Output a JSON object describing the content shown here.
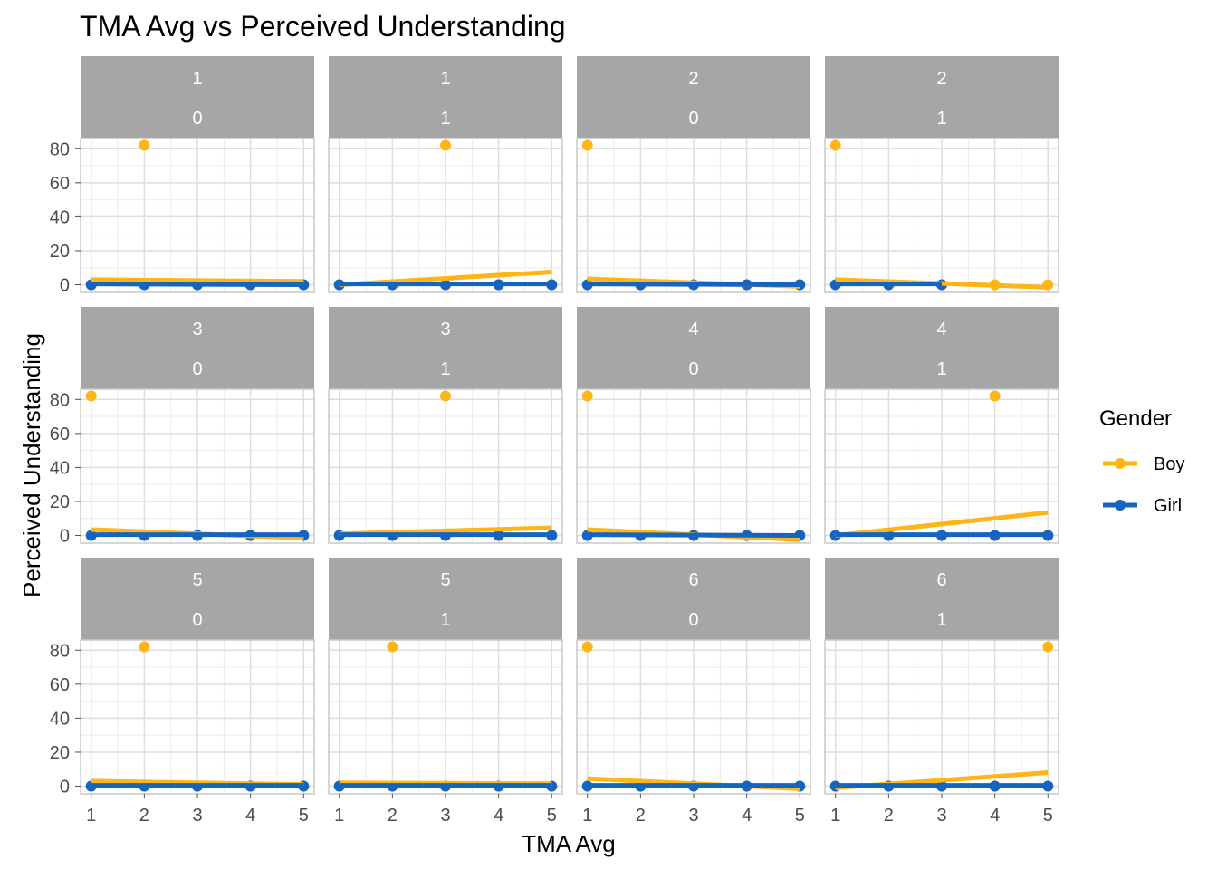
{
  "chart_data": {
    "type": "scatter",
    "title": "TMA Avg vs Perceived Understanding",
    "xlabel": "TMA Avg",
    "ylabel": "Perceived Understanding",
    "xlim": [
      0.8,
      5.2
    ],
    "ylim": [
      -4.5,
      86
    ],
    "x_ticks": [
      1,
      2,
      3,
      4,
      5
    ],
    "y_ticks": [
      0,
      20,
      40,
      60,
      80
    ],
    "grid": true,
    "legend": {
      "title": "Gender",
      "position": "right",
      "entries": [
        {
          "name": "Boy",
          "color": "#FFB515"
        },
        {
          "name": "Girl",
          "color": "#1565C0"
        }
      ]
    },
    "facets": [
      {
        "row1": "1",
        "row2": "0",
        "boy_points": [
          [
            1,
            0
          ],
          [
            2,
            82
          ],
          [
            3,
            0
          ],
          [
            4,
            0
          ],
          [
            5,
            0
          ]
        ],
        "girl_points": [
          [
            1,
            0
          ],
          [
            2,
            0
          ],
          [
            3,
            0
          ],
          [
            4,
            0
          ],
          [
            5,
            0
          ]
        ],
        "boy_fit": [
          [
            1,
            3
          ],
          [
            5,
            2
          ]
        ],
        "girl_fit": [
          [
            1,
            0.5
          ],
          [
            5,
            0
          ]
        ]
      },
      {
        "row1": "1",
        "row2": "1",
        "boy_points": [
          [
            1,
            0
          ],
          [
            2,
            0
          ],
          [
            3,
            82
          ],
          [
            4,
            0
          ],
          [
            5,
            0
          ]
        ],
        "girl_points": [
          [
            1,
            0
          ],
          [
            2,
            0
          ],
          [
            3,
            0
          ],
          [
            4,
            0
          ],
          [
            5,
            0
          ]
        ],
        "boy_fit": [
          [
            1,
            0
          ],
          [
            5,
            7.5
          ]
        ],
        "girl_fit": [
          [
            1,
            0.5
          ],
          [
            5,
            0.5
          ]
        ]
      },
      {
        "row1": "2",
        "row2": "0",
        "boy_points": [
          [
            1,
            82
          ],
          [
            2,
            0
          ],
          [
            3,
            0
          ],
          [
            4,
            0
          ],
          [
            5,
            0
          ]
        ],
        "girl_points": [
          [
            1,
            0
          ],
          [
            2,
            0
          ],
          [
            3,
            0
          ],
          [
            4,
            0
          ],
          [
            5,
            0
          ]
        ],
        "boy_fit": [
          [
            1,
            3.5
          ],
          [
            5,
            -1
          ]
        ],
        "girl_fit": [
          [
            1,
            0.5
          ],
          [
            5,
            0
          ]
        ]
      },
      {
        "row1": "2",
        "row2": "1",
        "boy_points": [
          [
            1,
            82
          ],
          [
            2,
            0
          ],
          [
            3,
            0
          ],
          [
            4,
            0
          ],
          [
            5,
            0
          ]
        ],
        "girl_points": [
          [
            1,
            0
          ],
          [
            2,
            0
          ],
          [
            3,
            0
          ]
        ],
        "boy_fit": [
          [
            1,
            3
          ],
          [
            5,
            -1.5
          ]
        ],
        "girl_fit": [
          [
            1,
            0.5
          ],
          [
            3,
            0.5
          ]
        ]
      },
      {
        "row1": "3",
        "row2": "0",
        "boy_points": [
          [
            1,
            82
          ],
          [
            2,
            0
          ],
          [
            3,
            0
          ],
          [
            4,
            0
          ],
          [
            5,
            0
          ]
        ],
        "girl_points": [
          [
            1,
            0
          ],
          [
            2,
            0
          ],
          [
            3,
            0
          ],
          [
            4,
            0
          ],
          [
            5,
            0
          ]
        ],
        "boy_fit": [
          [
            1,
            3.5
          ],
          [
            5,
            -1.5
          ]
        ],
        "girl_fit": [
          [
            1,
            0.5
          ],
          [
            5,
            0.5
          ]
        ]
      },
      {
        "row1": "3",
        "row2": "1",
        "boy_points": [
          [
            1,
            0
          ],
          [
            2,
            0
          ],
          [
            3,
            82
          ],
          [
            4,
            0
          ],
          [
            5,
            0
          ]
        ],
        "girl_points": [
          [
            1,
            0
          ],
          [
            2,
            0
          ],
          [
            3,
            0
          ],
          [
            4,
            0
          ],
          [
            5,
            0
          ]
        ],
        "boy_fit": [
          [
            1,
            1
          ],
          [
            5,
            4.5
          ]
        ],
        "girl_fit": [
          [
            1,
            0.5
          ],
          [
            5,
            0.5
          ]
        ]
      },
      {
        "row1": "4",
        "row2": "0",
        "boy_points": [
          [
            1,
            82
          ],
          [
            2,
            0
          ],
          [
            3,
            0
          ],
          [
            4,
            0
          ],
          [
            5,
            0
          ]
        ],
        "girl_points": [
          [
            1,
            0
          ],
          [
            2,
            0
          ],
          [
            3,
            0
          ],
          [
            4,
            0
          ],
          [
            5,
            0
          ]
        ],
        "boy_fit": [
          [
            1,
            3.5
          ],
          [
            5,
            -2.5
          ]
        ],
        "girl_fit": [
          [
            1,
            0.5
          ],
          [
            5,
            0
          ]
        ]
      },
      {
        "row1": "4",
        "row2": "1",
        "boy_points": [
          [
            1,
            0
          ],
          [
            2,
            0
          ],
          [
            3,
            0
          ],
          [
            4,
            82
          ],
          [
            5,
            0
          ]
        ],
        "girl_points": [
          [
            1,
            0
          ],
          [
            2,
            0
          ],
          [
            3,
            0
          ],
          [
            4,
            0
          ],
          [
            5,
            0
          ]
        ],
        "boy_fit": [
          [
            1,
            0
          ],
          [
            5,
            13.5
          ]
        ],
        "girl_fit": [
          [
            1,
            0.5
          ],
          [
            5,
            0.5
          ]
        ]
      },
      {
        "row1": "5",
        "row2": "0",
        "boy_points": [
          [
            1,
            0
          ],
          [
            2,
            82
          ],
          [
            3,
            0
          ],
          [
            4,
            0
          ],
          [
            5,
            0
          ]
        ],
        "girl_points": [
          [
            1,
            0
          ],
          [
            2,
            0
          ],
          [
            3,
            0
          ],
          [
            4,
            0
          ],
          [
            5,
            0
          ]
        ],
        "boy_fit": [
          [
            1,
            3
          ],
          [
            5,
            1
          ]
        ],
        "girl_fit": [
          [
            1,
            0.5
          ],
          [
            5,
            0.5
          ]
        ]
      },
      {
        "row1": "5",
        "row2": "1",
        "boy_points": [
          [
            1,
            0
          ],
          [
            2,
            82
          ],
          [
            3,
            0
          ],
          [
            4,
            0
          ],
          [
            5,
            0
          ]
        ],
        "girl_points": [
          [
            1,
            0
          ],
          [
            2,
            0
          ],
          [
            3,
            0
          ],
          [
            4,
            0
          ],
          [
            5,
            0
          ]
        ],
        "boy_fit": [
          [
            1,
            2
          ],
          [
            5,
            1.5
          ]
        ],
        "girl_fit": [
          [
            1,
            0.5
          ],
          [
            5,
            0.5
          ]
        ]
      },
      {
        "row1": "6",
        "row2": "0",
        "boy_points": [
          [
            1,
            82
          ],
          [
            2,
            0
          ],
          [
            3,
            0
          ],
          [
            4,
            0
          ],
          [
            5,
            0
          ]
        ],
        "girl_points": [
          [
            1,
            0
          ],
          [
            2,
            0
          ],
          [
            3,
            0
          ],
          [
            4,
            0
          ],
          [
            5,
            0
          ]
        ],
        "boy_fit": [
          [
            1,
            4.5
          ],
          [
            5,
            -1.5
          ]
        ],
        "girl_fit": [
          [
            1,
            0.5
          ],
          [
            5,
            0.5
          ]
        ]
      },
      {
        "row1": "6",
        "row2": "1",
        "boy_points": [
          [
            1,
            0
          ],
          [
            2,
            0
          ],
          [
            3,
            0
          ],
          [
            4,
            0
          ],
          [
            5,
            82
          ]
        ],
        "girl_points": [
          [
            1,
            0
          ],
          [
            2,
            0
          ],
          [
            3,
            0
          ],
          [
            4,
            0
          ],
          [
            5,
            0
          ]
        ],
        "boy_fit": [
          [
            1,
            -1
          ],
          [
            5,
            8
          ]
        ],
        "girl_fit": [
          [
            1,
            0.5
          ],
          [
            5,
            0.5
          ]
        ]
      }
    ]
  }
}
